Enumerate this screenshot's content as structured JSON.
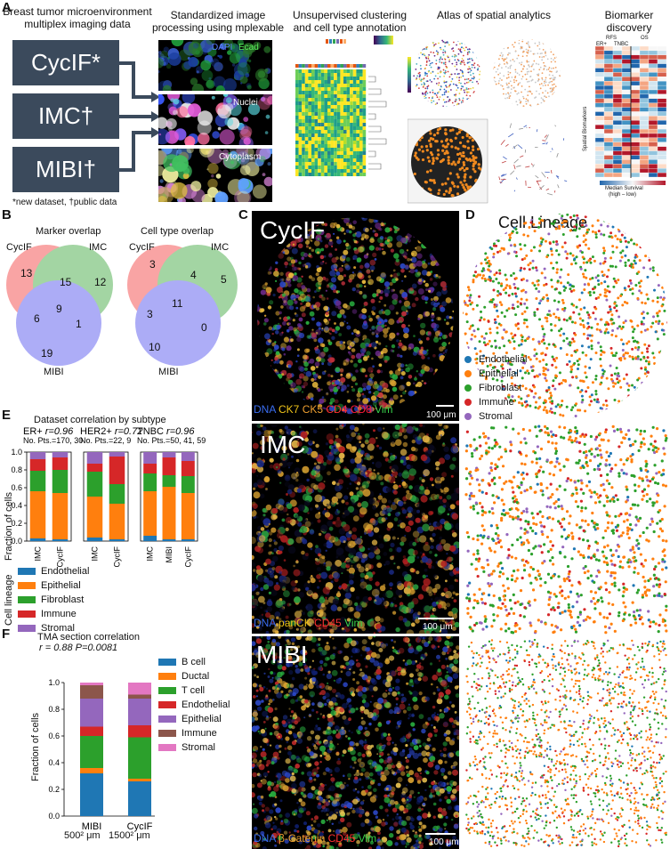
{
  "panel_labels": {
    "a": "A",
    "b": "B",
    "c": "C",
    "d": "D",
    "e": "E",
    "f": "F"
  },
  "panelA": {
    "col1_title": "Breast tumor microenvironment multiplex imaging data",
    "boxes": [
      "CycIF*",
      "IMC†",
      "MIBI†"
    ],
    "footnote": "*new dataset, †public data",
    "col2_title": "Standardized image processing using mplexable",
    "img_labels": {
      "dapi": "DAPI",
      "ecad": "Ecad",
      "nuclei": "Nuclei",
      "cytoplasm": "Cytoplasm"
    },
    "col3_title": "Unsupervised clustering and cell type annotation",
    "col4_title": "Atlas of spatial analytics",
    "col5_title": "Biomarker discovery",
    "bio_header": {
      "rfs": "RFS",
      "os": "OS",
      "er": "ER+",
      "tnbc": "TNBC"
    },
    "bio_axis": "Spatial Biomarkers",
    "bio_colorbar_title": "Median Survival",
    "bio_colorbar_sub": "(high – low)"
  },
  "panelB": {
    "marker_title": "Marker overlap",
    "cell_title": "Cell type overlap",
    "set_labels": {
      "cycif": "CycIF",
      "imc": "IMC",
      "mibi": "MIBI"
    },
    "marker_counts": {
      "cycif_only": "13",
      "cycif_imc": "15",
      "imc_only": "12",
      "cycif_mibi": "6",
      "all": "9",
      "imc_mibi": "1",
      "mibi_only": "19"
    },
    "cell_counts": {
      "cycif_only": "3",
      "cycif_imc": "4",
      "imc_only": "5",
      "cycif_mibi": "3",
      "all": "11",
      "imc_mibi": "0",
      "mibi_only": "10"
    }
  },
  "panelC": {
    "titles": [
      "CycIF",
      "IMC",
      "MIBI"
    ],
    "channels": [
      [
        {
          "t": "DNA",
          "c": "#3a6df0"
        },
        {
          "t": "CK7",
          "c": "#f0c419"
        },
        {
          "t": "CK5",
          "c": "#f0a030"
        },
        {
          "t": "CD4",
          "c": "#ff3030"
        },
        {
          "t": "CD8",
          "c": "#ff1a3a"
        },
        {
          "t": "Vim",
          "c": "#38d24a"
        }
      ],
      [
        {
          "t": "DNA",
          "c": "#3a6df0"
        },
        {
          "t": "panCK",
          "c": "#f0c419"
        },
        {
          "t": "CD45",
          "c": "#ff3030"
        },
        {
          "t": "Vim",
          "c": "#38d24a"
        }
      ],
      [
        {
          "t": "DNA",
          "c": "#3a6df0"
        },
        {
          "t": "β-Catenin",
          "c": "#f0a030"
        },
        {
          "t": "CD45",
          "c": "#ff3030"
        },
        {
          "t": "Vim",
          "c": "#38d24a"
        }
      ]
    ],
    "scale": "100 μm"
  },
  "panelD": {
    "title": "Cell Lineage",
    "legend": [
      {
        "name": "Endothelial",
        "color": "#1f77b4"
      },
      {
        "name": "Epithelial",
        "color": "#ff7f0e"
      },
      {
        "name": "Fibroblast",
        "color": "#2ca02c"
      },
      {
        "name": "Immune",
        "color": "#d62728"
      },
      {
        "name": "Stromal",
        "color": "#9467bd"
      }
    ]
  },
  "panelE": {
    "title": "Dataset correlation by subtype",
    "subplots": [
      {
        "name": "ER+",
        "r": "r=0.96",
        "pts": "No. Pts.=170, 30"
      },
      {
        "name": "HER2+",
        "r": "r=0.72",
        "pts": "No. Pts.=22, 9"
      },
      {
        "name": "TNBC",
        "r": "r=0.96",
        "pts": "No. Pts.=50, 41, 59"
      }
    ],
    "ylabel": "Fraction of cells",
    "legend_title": "Cell lineage",
    "yticks": [
      "0.0",
      "0.2",
      "0.4",
      "0.6",
      "0.8",
      "1.0"
    ]
  },
  "panelF": {
    "title": "TMA section correlation",
    "stat": "r = 0.88 P=0.0081",
    "ylabel": "Fraction of cells",
    "size_labels": [
      "500² μm",
      "1500² μm"
    ],
    "yticks": [
      "0.0",
      "0.2",
      "0.4",
      "0.6",
      "0.8",
      "1.0"
    ]
  },
  "chart_data": [
    {
      "type": "bar",
      "title": "Dataset correlation by subtype",
      "subtitle": "ER+ r=0.96 No. Pts.=170, 30",
      "ylabel": "Fraction of cells",
      "ylim": [
        0,
        1
      ],
      "categories": [
        "IMC",
        "CycIF"
      ],
      "stacked": true,
      "series": [
        {
          "name": "Endothelial",
          "color": "#1f77b4",
          "values": [
            0.03,
            0.02
          ]
        },
        {
          "name": "Epithelial",
          "color": "#ff7f0e",
          "values": [
            0.53,
            0.52
          ]
        },
        {
          "name": "Fibroblast",
          "color": "#2ca02c",
          "values": [
            0.23,
            0.26
          ]
        },
        {
          "name": "Immune",
          "color": "#d62728",
          "values": [
            0.13,
            0.14
          ]
        },
        {
          "name": "Stromal",
          "color": "#9467bd",
          "values": [
            0.08,
            0.06
          ]
        }
      ]
    },
    {
      "type": "bar",
      "subtitle": "HER2+ r=0.72 No. Pts.=22, 9",
      "ylim": [
        0,
        1
      ],
      "categories": [
        "IMC",
        "CycIF"
      ],
      "stacked": true,
      "series": [
        {
          "name": "Endothelial",
          "color": "#1f77b4",
          "values": [
            0.04,
            0.02
          ]
        },
        {
          "name": "Epithelial",
          "color": "#ff7f0e",
          "values": [
            0.46,
            0.4
          ]
        },
        {
          "name": "Fibroblast",
          "color": "#2ca02c",
          "values": [
            0.28,
            0.22
          ]
        },
        {
          "name": "Immune",
          "color": "#d62728",
          "values": [
            0.09,
            0.31
          ]
        },
        {
          "name": "Stromal",
          "color": "#9467bd",
          "values": [
            0.13,
            0.05
          ]
        }
      ]
    },
    {
      "type": "bar",
      "subtitle": "TNBC r=0.96 No. Pts.=50, 41, 59",
      "ylim": [
        0,
        1
      ],
      "categories": [
        "IMC",
        "MIBI",
        "CycIF"
      ],
      "stacked": true,
      "series": [
        {
          "name": "Endothelial",
          "color": "#1f77b4",
          "values": [
            0.06,
            0.02,
            0.02
          ]
        },
        {
          "name": "Epithelial",
          "color": "#ff7f0e",
          "values": [
            0.5,
            0.59,
            0.52
          ]
        },
        {
          "name": "Fibroblast",
          "color": "#2ca02c",
          "values": [
            0.2,
            0.13,
            0.19
          ]
        },
        {
          "name": "Immune",
          "color": "#d62728",
          "values": [
            0.11,
            0.2,
            0.17
          ]
        },
        {
          "name": "Stromal",
          "color": "#9467bd",
          "values": [
            0.13,
            0.06,
            0.1
          ]
        }
      ]
    },
    {
      "type": "bar",
      "title": "TMA section correlation",
      "subtitle": "r = 0.88 P=0.0081",
      "ylabel": "Fraction of cells",
      "ylim": [
        0,
        1
      ],
      "categories": [
        "MIBI",
        "CycIF"
      ],
      "stacked": true,
      "series": [
        {
          "name": "B cell",
          "color": "#1f77b4",
          "values": [
            0.32,
            0.26
          ]
        },
        {
          "name": "Ductal",
          "color": "#ff7f0e",
          "values": [
            0.04,
            0.02
          ]
        },
        {
          "name": "T cell",
          "color": "#2ca02c",
          "values": [
            0.24,
            0.31
          ]
        },
        {
          "name": "Endothelial",
          "color": "#d62728",
          "values": [
            0.07,
            0.09
          ]
        },
        {
          "name": "Epithelial",
          "color": "#9467bd",
          "values": [
            0.21,
            0.2
          ]
        },
        {
          "name": "Immune",
          "color": "#8c564b",
          "values": [
            0.1,
            0.03
          ]
        },
        {
          "name": "Stromal",
          "color": "#e377c2",
          "values": [
            0.02,
            0.09
          ]
        }
      ]
    }
  ]
}
